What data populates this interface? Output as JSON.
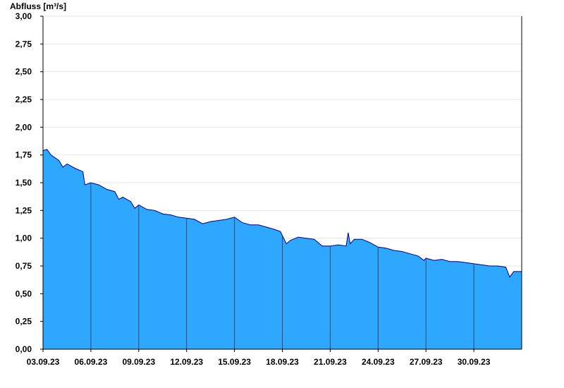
{
  "chart_data": {
    "type": "area",
    "ylabel": "Abfluss [m³/s]",
    "ylim": [
      0,
      3
    ],
    "y_ticks": [
      "0,00",
      "0,25",
      "0,50",
      "0,75",
      "1,00",
      "1,25",
      "1,50",
      "1,75",
      "2,00",
      "2,25",
      "2,50",
      "2,75",
      "3,00"
    ],
    "x_tick_labels": [
      "03.09.23",
      "06.09.23",
      "09.09.23",
      "12.09.23",
      "15.09.23",
      "18.09.23",
      "21.09.23",
      "24.09.23",
      "27.09.23",
      "30.09.23"
    ],
    "x_start": "2023-09-03",
    "x_end": "2023-10-03",
    "grid": true,
    "colors": {
      "fill": "#2ea8ff",
      "outline": "#00007a",
      "grid": "#e6e6e6",
      "axis": "#000000"
    },
    "x": [
      "2023-09-03T00:00",
      "2023-09-03T06:00",
      "2023-09-03T12:00",
      "2023-09-04T00:00",
      "2023-09-04T06:00",
      "2023-09-04T12:00",
      "2023-09-05T00:00",
      "2023-09-05T12:00",
      "2023-09-05T15:00",
      "2023-09-06T00:00",
      "2023-09-06T12:00",
      "2023-09-07T00:00",
      "2023-09-07T12:00",
      "2023-09-07T18:00",
      "2023-09-08T00:00",
      "2023-09-08T12:00",
      "2023-09-08T18:00",
      "2023-09-09T00:00",
      "2023-09-09T12:00",
      "2023-09-10T00:00",
      "2023-09-10T12:00",
      "2023-09-11T00:00",
      "2023-09-11T12:00",
      "2023-09-12T00:00",
      "2023-09-12T12:00",
      "2023-09-13T00:00",
      "2023-09-13T12:00",
      "2023-09-14T00:00",
      "2023-09-14T12:00",
      "2023-09-15T00:00",
      "2023-09-15T12:00",
      "2023-09-16T00:00",
      "2023-09-16T12:00",
      "2023-09-17T00:00",
      "2023-09-17T12:00",
      "2023-09-17T21:00",
      "2023-09-18T06:00",
      "2023-09-18T12:00",
      "2023-09-19T00:00",
      "2023-09-19T12:00",
      "2023-09-20T00:00",
      "2023-09-20T12:00",
      "2023-09-21T00:00",
      "2023-09-21T12:00",
      "2023-09-22T00:00",
      "2023-09-22T03:00",
      "2023-09-22T06:00",
      "2023-09-22T12:00",
      "2023-09-23T00:00",
      "2023-09-23T12:00",
      "2023-09-24T00:00",
      "2023-09-24T12:00",
      "2023-09-25T00:00",
      "2023-09-25T12:00",
      "2023-09-26T00:00",
      "2023-09-26T12:00",
      "2023-09-26T21:00",
      "2023-09-27T00:00",
      "2023-09-27T12:00",
      "2023-09-28T00:00",
      "2023-09-28T12:00",
      "2023-09-29T00:00",
      "2023-09-29T12:00",
      "2023-09-30T00:00",
      "2023-09-30T12:00",
      "2023-10-01T00:00",
      "2023-10-01T12:00",
      "2023-10-02T00:00",
      "2023-10-02T06:00",
      "2023-10-02T12:00",
      "2023-10-03T00:00"
    ],
    "series": [
      {
        "values": [
          1.79,
          1.8,
          1.75,
          1.7,
          1.64,
          1.67,
          1.63,
          1.6,
          1.48,
          1.5,
          1.48,
          1.44,
          1.42,
          1.35,
          1.37,
          1.33,
          1.27,
          1.3,
          1.26,
          1.25,
          1.22,
          1.21,
          1.19,
          1.18,
          1.17,
          1.13,
          1.15,
          1.16,
          1.17,
          1.19,
          1.14,
          1.12,
          1.12,
          1.1,
          1.08,
          1.06,
          0.95,
          0.98,
          1.01,
          1.0,
          0.99,
          0.93,
          0.93,
          0.94,
          0.93,
          1.05,
          0.95,
          0.99,
          0.99,
          0.96,
          0.92,
          0.91,
          0.89,
          0.88,
          0.86,
          0.84,
          0.8,
          0.82,
          0.8,
          0.81,
          0.79,
          0.79,
          0.78,
          0.77,
          0.76,
          0.75,
          0.75,
          0.74,
          0.65,
          0.7,
          0.7
        ]
      }
    ]
  }
}
